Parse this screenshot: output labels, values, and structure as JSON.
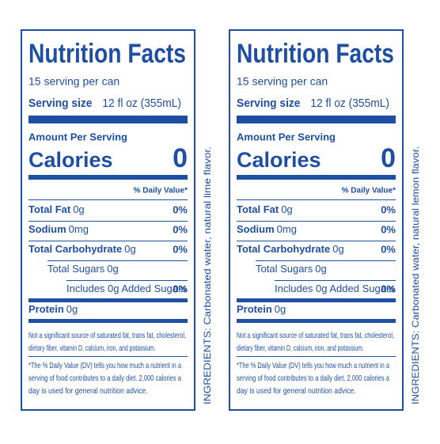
{
  "labels": [
    {
      "title": "Nutrition Facts",
      "servings": "15 serving per can",
      "serving_size_label": "Serving size",
      "serving_size_value": "12 fl oz (355mL)",
      "amount_per_serving": "Amount Per Serving",
      "calories_label": "Calories",
      "calories_value": "0",
      "daily_value_header": "% Daily Value*",
      "rows": [
        {
          "label": "Total Fat",
          "amount": "0g",
          "dv": "0%"
        },
        {
          "label": "Sodium",
          "amount": "0mg",
          "dv": "0%"
        },
        {
          "label": "Total Carbohydrate",
          "amount": "0g",
          "dv": "0%"
        },
        {
          "label": "Total Sugars",
          "amount": "0g"
        },
        {
          "label": "Includes 0g Added Sugars",
          "dv": "0%"
        },
        {
          "label": "Protein",
          "amount": "0g"
        }
      ],
      "footnote_1": [
        "Not a significant source of saturated fat, trans fat, cholesterol,",
        "dietary fiber, vitamin D, calcium, iron, and potassium."
      ],
      "footnote_2": [
        "*The % Daily Value (DV) tells you how much a nutrient in a",
        "serving of food contributes to a daily diet. 2,000 calories a",
        "day is used for general nutrition advice."
      ],
      "ingredients": "INGREDIENTS: Carbonated water, natural lime flavor."
    },
    {
      "title": "Nutrition Facts",
      "servings": "15 serving per can",
      "serving_size_label": "Serving size",
      "serving_size_value": "12 fl oz (355mL)",
      "amount_per_serving": "Amount Per Serving",
      "calories_label": "Calories",
      "calories_value": "0",
      "daily_value_header": "% Daily Value*",
      "rows": [
        {
          "label": "Total Fat",
          "amount": "0g",
          "dv": "0%"
        },
        {
          "label": "Sodium",
          "amount": "0mg",
          "dv": "0%"
        },
        {
          "label": "Total Carbohydrate",
          "amount": "0g",
          "dv": "0%"
        },
        {
          "label": "Total Sugars",
          "amount": "0g"
        },
        {
          "label": "Includes 0g Added Sugars",
          "dv": "0%"
        },
        {
          "label": "Protein",
          "amount": "0g"
        }
      ],
      "footnote_1": [
        "Not a significant source of saturated fat, trans fat, cholesterol,",
        "dietary fiber, vitamin D, calcium, iron, and potassium."
      ],
      "footnote_2": [
        "*The % Daily Value (DV) tells you how much a nutrient in a",
        "serving of food contributes to a daily diet. 2,000 calories a",
        "day is used for general nutrition advice."
      ],
      "ingredients": "INGREDIENTS: Carbonated water, natural lemon flavor."
    }
  ]
}
